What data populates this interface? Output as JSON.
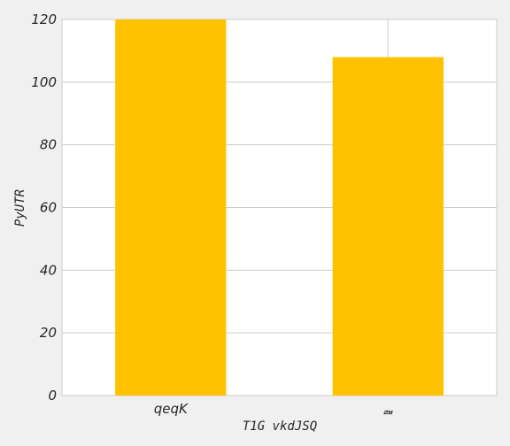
{
  "chart_data": {
    "type": "bar",
    "title": "",
    "xlabel": "T1G vkdJSQ",
    "ylabel": "PyUTR",
    "categories": [
      "qeqK",
      "ᆲ"
    ],
    "values": [
      120,
      108
    ],
    "ylim": [
      0,
      120
    ],
    "yticks": [
      0,
      20,
      40,
      60,
      80,
      100,
      120
    ],
    "grid": true,
    "legend": "none",
    "colors": {
      "bar": "#ffc200",
      "grid": "#cccccc",
      "plot_background": "#ffffff",
      "page_background": "#f0f0f0"
    }
  }
}
